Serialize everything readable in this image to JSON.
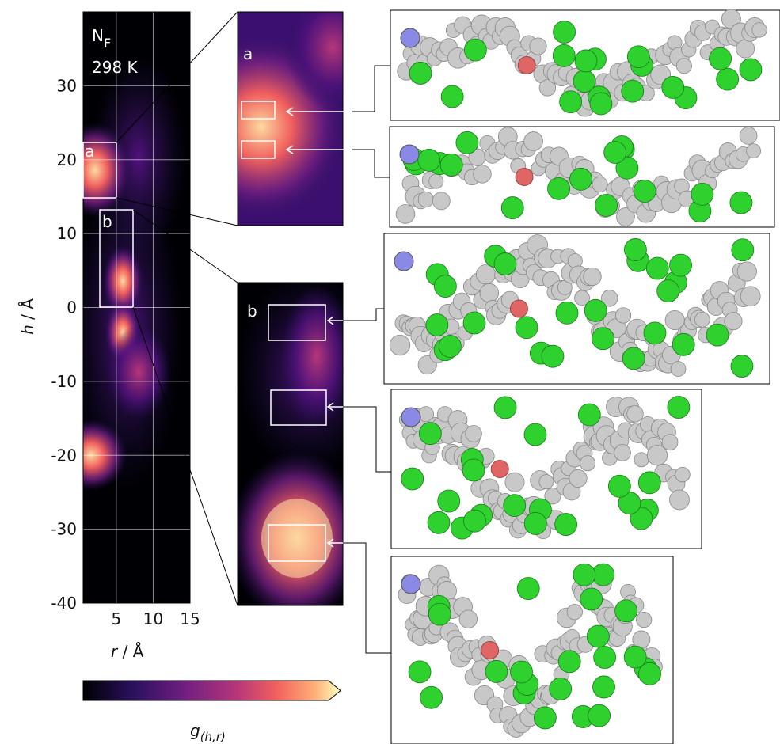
{
  "chart_data": {
    "type": "heatmap",
    "annotation": {
      "main": "N",
      "sub": "F"
    },
    "temperature": "298 K",
    "xlabel": {
      "var": "r",
      "unit": "/ Å"
    },
    "ylabel": {
      "var": "h",
      "unit": "/ Å"
    },
    "xlim": [
      0.5,
      15
    ],
    "ylim": [
      -40,
      40
    ],
    "xticks": [
      5,
      10,
      15
    ],
    "yticks": [
      -40,
      -30,
      -20,
      -10,
      0,
      10,
      20,
      30
    ],
    "grid": true,
    "insets": [
      "a",
      "b"
    ],
    "colormap": "magma",
    "colorbar_label": {
      "var": "g",
      "sub": "(h,r)"
    }
  }
}
